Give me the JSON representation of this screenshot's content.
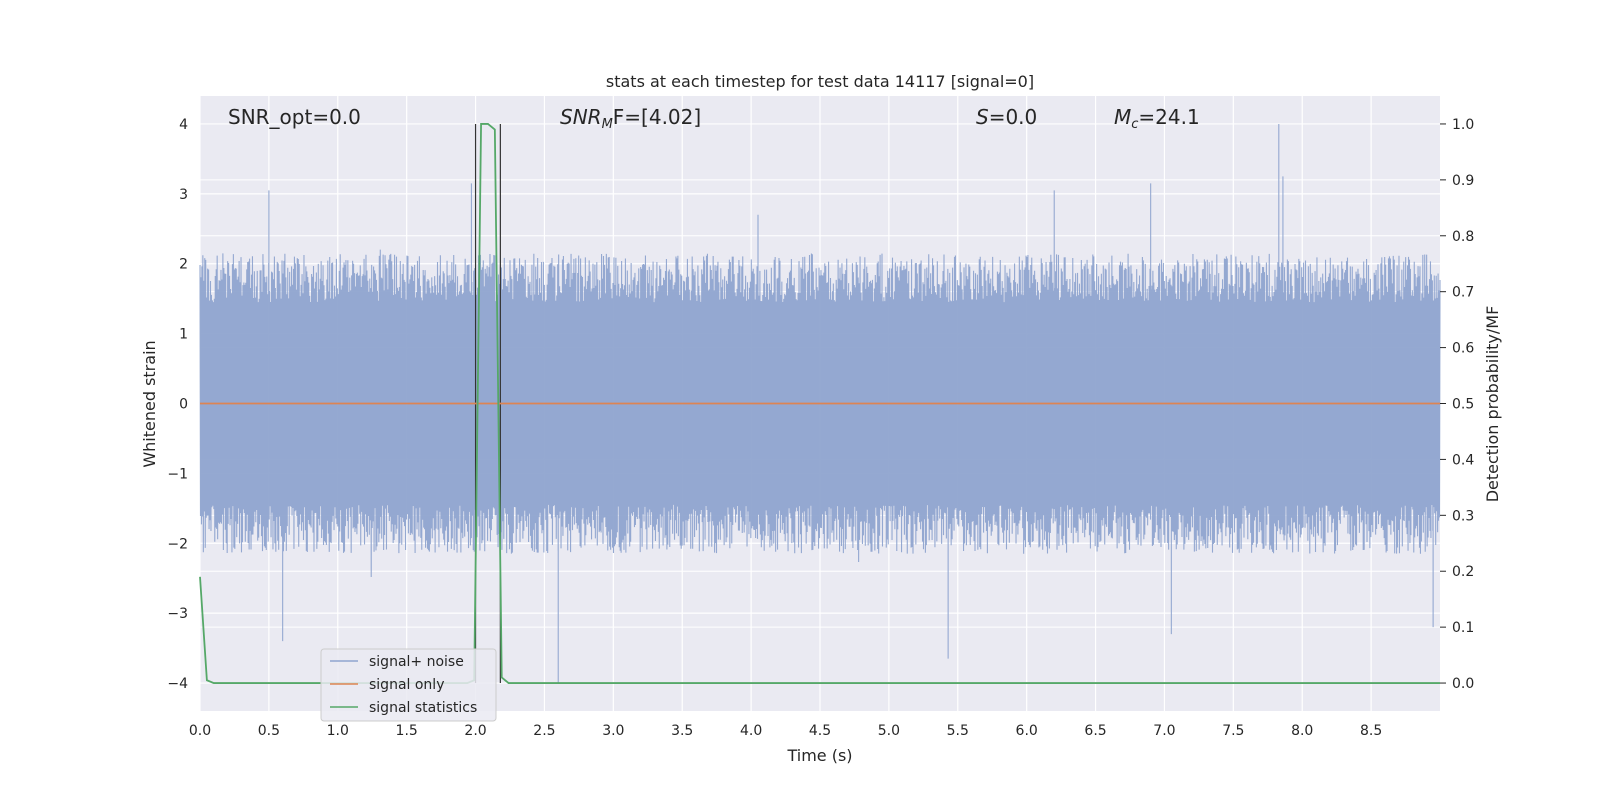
{
  "chart_data": {
    "type": "line",
    "title": "stats at each timestep for test data 14117 [signal=0]",
    "xlabel": "Time (s)",
    "ylabel": "Whitened strain",
    "ylabel_right": "Detection probability/MF",
    "xlim": [
      0.0,
      9.0
    ],
    "ylim": [
      -4.4,
      4.4
    ],
    "ylim_right": [
      -0.05,
      1.05
    ],
    "x_ticks": [
      0.0,
      0.5,
      1.0,
      1.5,
      2.0,
      2.5,
      3.0,
      3.5,
      4.0,
      4.5,
      5.0,
      5.5,
      6.0,
      6.5,
      7.0,
      7.5,
      8.0,
      8.5
    ],
    "x_tick_labels": [
      "0.0",
      "0.5",
      "1.0",
      "1.5",
      "2.0",
      "2.5",
      "3.0",
      "3.5",
      "4.0",
      "4.5",
      "5.0",
      "5.5",
      "6.0",
      "6.5",
      "7.0",
      "7.5",
      "8.0",
      "8.5"
    ],
    "y_ticks": [
      -4,
      -3,
      -2,
      -1,
      0,
      1,
      2,
      3,
      4
    ],
    "y_tick_labels": [
      "−4",
      "−3",
      "−2",
      "−1",
      "0",
      "1",
      "2",
      "3",
      "4"
    ],
    "y_ticks_right": [
      0.0,
      0.1,
      0.2,
      0.3,
      0.4,
      0.5,
      0.6,
      0.7,
      0.8,
      0.9,
      1.0
    ],
    "y_tick_labels_right": [
      "0.0",
      "0.1",
      "0.2",
      "0.3",
      "0.4",
      "0.5",
      "0.6",
      "0.7",
      "0.8",
      "0.9",
      "1.0"
    ],
    "grid": true,
    "legend_position": "lower-left",
    "annotations": {
      "snr_opt": "SNR_opt=0.0",
      "snr_mf_main": "SNR",
      "snr_mf_sub": "M",
      "snr_mf_rest": "F=[4.02]",
      "s_main": "S",
      "s_rest": "=0.0",
      "mc_main": "M",
      "mc_sub": "c",
      "mc_rest": "=24.1"
    },
    "vertical_markers": [
      2.0,
      2.18
    ],
    "series": [
      {
        "name": "signal+ noise",
        "color": "#8fa4cf",
        "kind": "noise",
        "sample_rate_hz": 2048,
        "duration_s": 9.0,
        "typical_range": [
          -2.2,
          2.2
        ],
        "notable_peaks": [
          {
            "x": 0.5,
            "y": 3.05
          },
          {
            "x": 0.6,
            "y": -3.4
          },
          {
            "x": 1.97,
            "y": 3.15
          },
          {
            "x": 2.6,
            "y": -4.0
          },
          {
            "x": 4.05,
            "y": 2.7
          },
          {
            "x": 5.43,
            "y": -3.65
          },
          {
            "x": 6.2,
            "y": 3.05
          },
          {
            "x": 6.9,
            "y": 3.15
          },
          {
            "x": 7.05,
            "y": -3.3
          },
          {
            "x": 7.83,
            "y": 4.0
          },
          {
            "x": 7.86,
            "y": 3.25
          },
          {
            "x": 8.95,
            "y": -3.2
          }
        ]
      },
      {
        "name": "signal only",
        "color": "#dd8452",
        "x": [
          0.0,
          9.0
        ],
        "y": [
          0.0,
          0.0
        ]
      },
      {
        "name": "signal statistics",
        "color": "#55a868",
        "axis": "right",
        "x": [
          0.0,
          0.05,
          0.1,
          0.15,
          1.94,
          1.99,
          2.04,
          2.09,
          2.14,
          2.19,
          2.24,
          2.29,
          9.0
        ],
        "y": [
          0.19,
          0.005,
          0.0,
          0.0,
          0.0,
          0.005,
          1.0,
          1.0,
          0.99,
          0.01,
          0.0,
          0.0,
          0.0
        ]
      }
    ]
  }
}
